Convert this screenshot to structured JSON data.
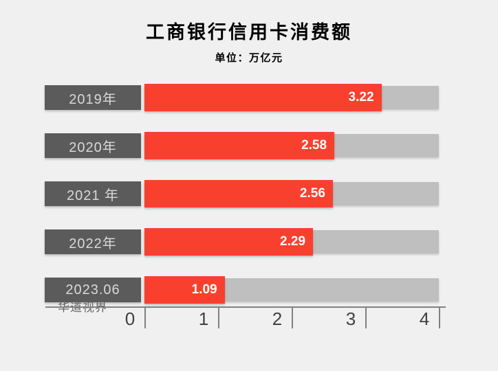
{
  "page": {
    "background_color": "#f0f0f0"
  },
  "watermark": "华道视界",
  "colors": {
    "background": "#f0f0f0",
    "bar": "#f9402e",
    "track": "#bfbfbf",
    "label_box": "#5b5b5b",
    "label_box_text": "#d9d9d9",
    "value_text": "#ffffff",
    "axis": "#808080",
    "axis_text": "#404040",
    "title_text": "#000000",
    "watermark_text": "#636363"
  },
  "chart_data": {
    "type": "bar",
    "orientation": "horizontal",
    "title": "工商银行信用卡消费额",
    "unit_label": "单位：万亿元",
    "categories": [
      "2019年",
      "2020年",
      "2021 年",
      "2022年",
      "2023.06"
    ],
    "values": [
      3.22,
      2.58,
      2.56,
      2.29,
      1.09
    ],
    "value_labels": [
      "3.22",
      "2.58",
      "2.56",
      "2.29",
      "1.09"
    ],
    "xlabel": "",
    "ylabel": "",
    "xlim": [
      0,
      4
    ],
    "x_ticks": [
      0,
      1,
      2,
      3,
      4
    ],
    "grid": false,
    "legend": false
  }
}
